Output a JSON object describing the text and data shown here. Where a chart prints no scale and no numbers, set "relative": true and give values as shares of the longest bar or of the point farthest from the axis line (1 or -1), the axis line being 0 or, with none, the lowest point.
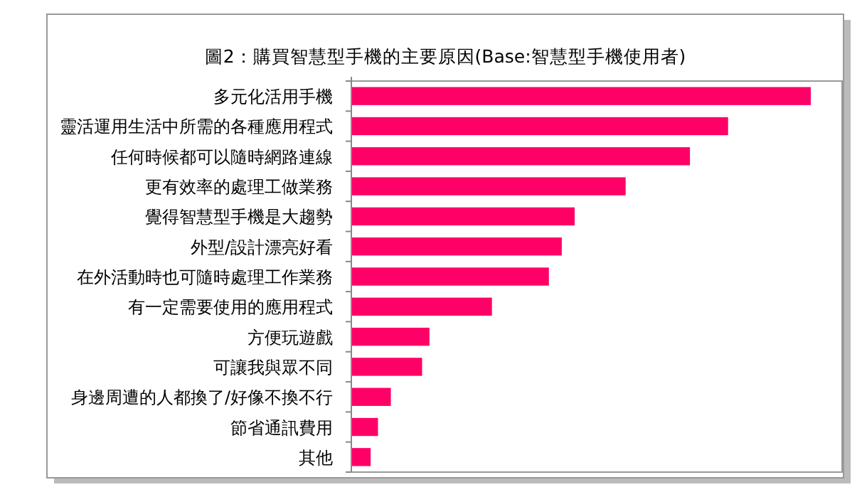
{
  "chart_data": {
    "type": "bar",
    "orientation": "horizontal",
    "relative": true,
    "title": "圖2：購買智慧型手機的主要原因(Base:智慧型手機使用者)",
    "categories": [
      "多元化活用手機",
      "靈活運用生活中所需的各種應用程式",
      "任何時候都可以隨時網路連線",
      "更有效率的處理工做業務",
      "覺得智慧型手機是大趨勢",
      "外型/設計漂亮好看",
      "在外活動時也可隨時處理工作業務",
      "有一定需要使用的應用程式",
      "方便玩遊戲",
      "可讓我與眾不同",
      "身邊周遭的人都換了/好像不換不行",
      "節省通訊費用",
      "其他"
    ],
    "values": [
      1,
      0.82,
      0.737,
      0.597,
      0.486,
      0.458,
      0.43,
      0.306,
      0.17,
      0.154,
      0.086,
      0.058,
      0.042
    ],
    "color": "#ff0066"
  }
}
